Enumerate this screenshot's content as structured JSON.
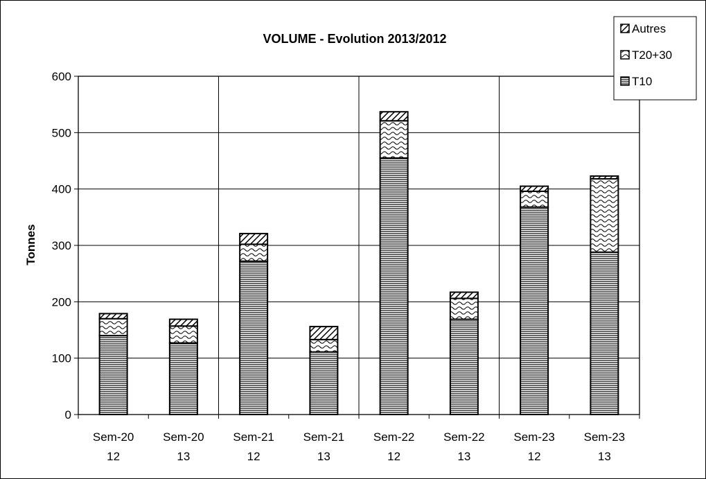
{
  "chart_data": {
    "type": "bar",
    "stacked": true,
    "title": "VOLUME - Evolution 2013/2012",
    "xlabel": "",
    "ylabel": "Tonnes",
    "ylim": [
      0,
      600
    ],
    "yticks": [
      0,
      100,
      200,
      300,
      400,
      500,
      600
    ],
    "grid": true,
    "legend_position": "top-right",
    "categories": [
      [
        "Sem-20",
        "12"
      ],
      [
        "Sem-20",
        "13"
      ],
      [
        "Sem-21",
        "12"
      ],
      [
        "Sem-21",
        "13"
      ],
      [
        "Sem-22",
        "12"
      ],
      [
        "Sem-22",
        "13"
      ],
      [
        "Sem-23",
        "12"
      ],
      [
        "Sem-23",
        "13"
      ]
    ],
    "series": [
      {
        "name": "T10",
        "pattern": "horizontal-lines",
        "values": [
          140,
          127,
          272,
          111,
          455,
          169,
          368,
          288
        ]
      },
      {
        "name": "T20+30",
        "pattern": "wavy",
        "values": [
          30,
          30,
          30,
          22,
          66,
          37,
          28,
          130
        ]
      },
      {
        "name": "Autres",
        "pattern": "diagonal-lines",
        "values": [
          9,
          12,
          19,
          23,
          16,
          11,
          9,
          5
        ]
      }
    ],
    "legend_order": [
      "Autres",
      "T20+30",
      "T10"
    ],
    "colors": {
      "line": "#000000",
      "background": "#ffffff"
    }
  }
}
